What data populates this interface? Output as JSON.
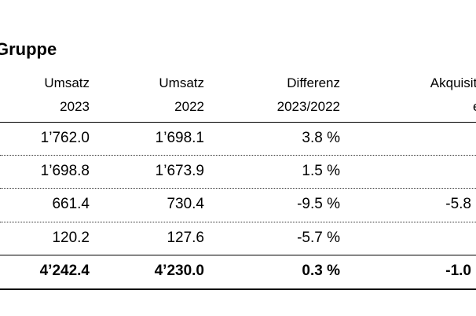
{
  "title": "Gruppe",
  "headers": [
    {
      "line1": "Umsatz",
      "line2": "2023"
    },
    {
      "line1": "Umsatz",
      "line2": "2022"
    },
    {
      "line1": "Differenz",
      "line2": "2023/2022"
    },
    {
      "line1": "Akquisition",
      "line2": "effe"
    }
  ],
  "rows": [
    {
      "umsatz_2023": "1’762.0",
      "umsatz_2022": "1’698.1",
      "differenz": "3.8 %",
      "akquisition": ""
    },
    {
      "umsatz_2023": "1’698.8",
      "umsatz_2022": "1’673.9",
      "differenz": "1.5 %",
      "akquisition": ""
    },
    {
      "umsatz_2023": "661.4",
      "umsatz_2022": "730.4",
      "differenz": "-9.5 %",
      "akquisition": "-5.8"
    },
    {
      "umsatz_2023": "120.2",
      "umsatz_2022": "127.6",
      "differenz": "-5.7 %",
      "akquisition": ""
    }
  ],
  "total": {
    "umsatz_2023": "4’242.4",
    "umsatz_2022": "4’230.0",
    "differenz": "0.3 %",
    "akquisition": "-1.0"
  }
}
